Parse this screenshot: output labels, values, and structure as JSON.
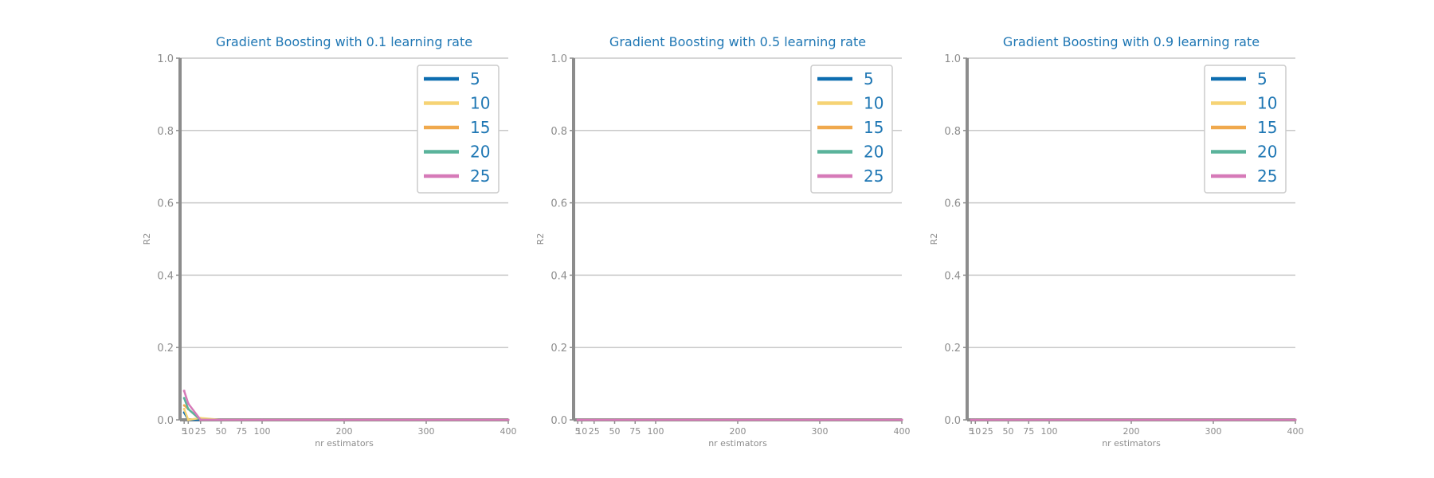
{
  "chart_data": [
    {
      "type": "line",
      "title": "Gradient Boosting with 0.1 learning rate",
      "xlabel": "nr estimators",
      "ylabel": "R2",
      "xlim": [
        0,
        400
      ],
      "ylim": [
        0.0,
        1.0
      ],
      "xticks": [
        5,
        10,
        25,
        50,
        75,
        100,
        200,
        300,
        400
      ],
      "yticks": [
        "0.0",
        "0.2",
        "0.4",
        "0.6",
        "0.8",
        "1.0"
      ],
      "grid": "y",
      "legend_position": "top-right",
      "x": [
        5,
        10,
        25,
        50,
        75,
        100,
        200,
        300,
        400
      ],
      "series": [
        {
          "name": "5",
          "color": "#0d6db0",
          "values": [
            0.02,
            0.0,
            0.0,
            0.0,
            0.0,
            0.0,
            0.0,
            0.0,
            0.0
          ]
        },
        {
          "name": "10",
          "color": "#f6d374",
          "values": [
            0.03,
            0.0,
            0.005,
            0.0,
            0.0,
            0.0,
            0.0,
            0.0,
            0.0
          ]
        },
        {
          "name": "15",
          "color": "#f0a94d",
          "values": [
            0.04,
            0.03,
            0.0,
            0.0,
            0.0,
            0.0,
            0.0,
            0.0,
            0.0
          ]
        },
        {
          "name": "20",
          "color": "#5ab39b",
          "values": [
            0.06,
            0.03,
            0.0,
            0.0,
            0.0,
            0.0,
            0.0,
            0.0,
            0.0
          ]
        },
        {
          "name": "25",
          "color": "#d67ab8",
          "values": [
            0.08,
            0.045,
            0.0,
            0.0,
            0.0,
            0.0,
            0.0,
            0.0,
            0.0
          ]
        }
      ]
    },
    {
      "type": "line",
      "title": "Gradient Boosting with 0.5 learning rate",
      "xlabel": "nr estimators",
      "ylabel": "R2",
      "xlim": [
        0,
        400
      ],
      "ylim": [
        0.0,
        1.0
      ],
      "xticks": [
        5,
        10,
        25,
        50,
        75,
        100,
        200,
        300,
        400
      ],
      "yticks": [
        "0.0",
        "0.2",
        "0.4",
        "0.6",
        "0.8",
        "1.0"
      ],
      "grid": "y",
      "legend_position": "top-right",
      "x": [
        5,
        10,
        25,
        50,
        75,
        100,
        200,
        300,
        400
      ],
      "series": [
        {
          "name": "5",
          "color": "#0d6db0",
          "values": [
            0,
            0,
            0,
            0,
            0,
            0,
            0,
            0,
            0
          ]
        },
        {
          "name": "10",
          "color": "#f6d374",
          "values": [
            0,
            0,
            0,
            0,
            0,
            0,
            0,
            0,
            0
          ]
        },
        {
          "name": "15",
          "color": "#f0a94d",
          "values": [
            0,
            0,
            0,
            0,
            0,
            0,
            0,
            0,
            0
          ]
        },
        {
          "name": "20",
          "color": "#5ab39b",
          "values": [
            0,
            0,
            0,
            0,
            0,
            0,
            0,
            0,
            0
          ]
        },
        {
          "name": "25",
          "color": "#d67ab8",
          "values": [
            0,
            0,
            0,
            0,
            0,
            0,
            0,
            0,
            0
          ]
        }
      ]
    },
    {
      "type": "line",
      "title": "Gradient Boosting with 0.9 learning rate",
      "xlabel": "nr estimators",
      "ylabel": "R2",
      "xlim": [
        0,
        400
      ],
      "ylim": [
        0.0,
        1.0
      ],
      "xticks": [
        5,
        10,
        25,
        50,
        75,
        100,
        200,
        300,
        400
      ],
      "yticks": [
        "0.0",
        "0.2",
        "0.4",
        "0.6",
        "0.8",
        "1.0"
      ],
      "grid": "y",
      "legend_position": "top-right",
      "x": [
        5,
        10,
        25,
        50,
        75,
        100,
        200,
        300,
        400
      ],
      "series": [
        {
          "name": "5",
          "color": "#0d6db0",
          "values": [
            0,
            0,
            0,
            0,
            0,
            0,
            0,
            0,
            0
          ]
        },
        {
          "name": "10",
          "color": "#f6d374",
          "values": [
            0,
            0,
            0,
            0,
            0,
            0,
            0,
            0,
            0
          ]
        },
        {
          "name": "15",
          "color": "#f0a94d",
          "values": [
            0,
            0,
            0,
            0,
            0,
            0,
            0,
            0,
            0
          ]
        },
        {
          "name": "20",
          "color": "#5ab39b",
          "values": [
            0,
            0,
            0,
            0,
            0,
            0,
            0,
            0,
            0
          ]
        },
        {
          "name": "25",
          "color": "#d67ab8",
          "values": [
            0,
            0,
            0,
            0,
            0,
            0,
            0,
            0,
            0
          ]
        }
      ]
    }
  ]
}
